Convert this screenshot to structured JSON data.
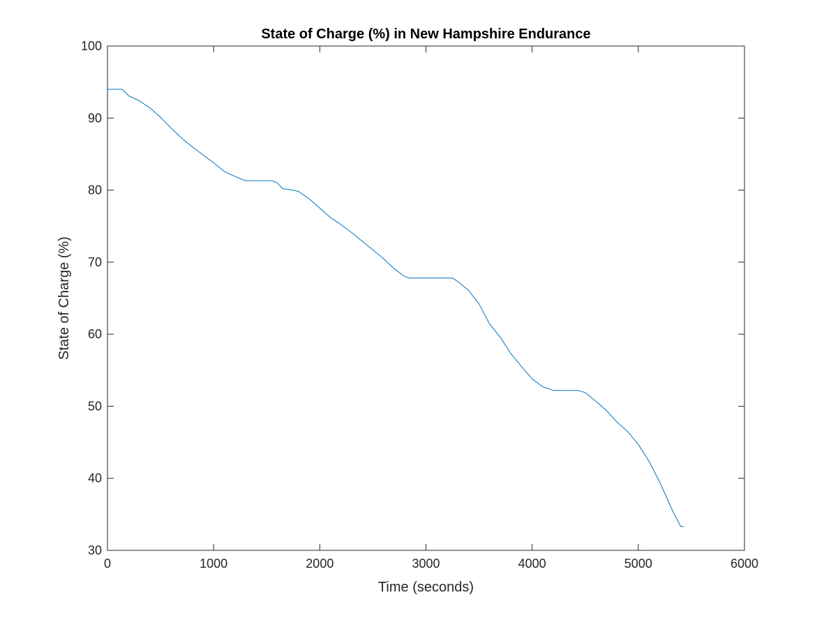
{
  "chart_data": {
    "type": "line",
    "title": "State of Charge (%) in New Hampshire Endurance",
    "xlabel": "Time (seconds)",
    "ylabel": "State of Charge (%)",
    "xlim": [
      0,
      6000
    ],
    "ylim": [
      30,
      100
    ],
    "xticks": [
      0,
      1000,
      2000,
      3000,
      4000,
      5000,
      6000
    ],
    "yticks": [
      30,
      40,
      50,
      60,
      70,
      80,
      90,
      100
    ],
    "xtick_labels": [
      "0",
      "1000",
      "2000",
      "3000",
      "4000",
      "5000",
      "6000"
    ],
    "ytick_labels": [
      "30",
      "40",
      "50",
      "60",
      "70",
      "80",
      "90",
      "100"
    ],
    "grid": false,
    "series": [
      {
        "color": "#0072BD",
        "x": [
          0,
          140,
          160,
          200,
          300,
          400,
          500,
          600,
          700,
          800,
          900,
          1000,
          1100,
          1200,
          1300,
          1350,
          1550,
          1600,
          1650,
          1750,
          1800,
          1900,
          2000,
          2100,
          2200,
          2300,
          2400,
          2500,
          2600,
          2700,
          2800,
          2850,
          3250,
          3300,
          3400,
          3500,
          3600,
          3700,
          3800,
          3900,
          4000,
          4100,
          4200,
          4230,
          4430,
          4500,
          4600,
          4700,
          4800,
          4900,
          5000,
          5100,
          5200,
          5250,
          5300,
          5350,
          5400,
          5430
        ],
        "y": [
          94,
          94,
          93.7,
          93.1,
          92.4,
          91.4,
          90.1,
          88.6,
          87.2,
          86,
          84.9,
          83.8,
          82.6,
          81.9,
          81.3,
          81.3,
          81.3,
          81,
          80.2,
          80,
          79.8,
          78.8,
          77.5,
          76.2,
          75.2,
          74.1,
          72.9,
          71.7,
          70.5,
          69.1,
          68,
          67.8,
          67.8,
          67.3,
          66.1,
          64.2,
          61.4,
          59.6,
          57.3,
          55.5,
          53.8,
          52.7,
          52.2,
          52.2,
          52.2,
          51.9,
          50.7,
          49.4,
          47.8,
          46.5,
          44.7,
          42.4,
          39.5,
          37.9,
          36.2,
          34.7,
          33.3,
          33.3
        ]
      }
    ]
  }
}
